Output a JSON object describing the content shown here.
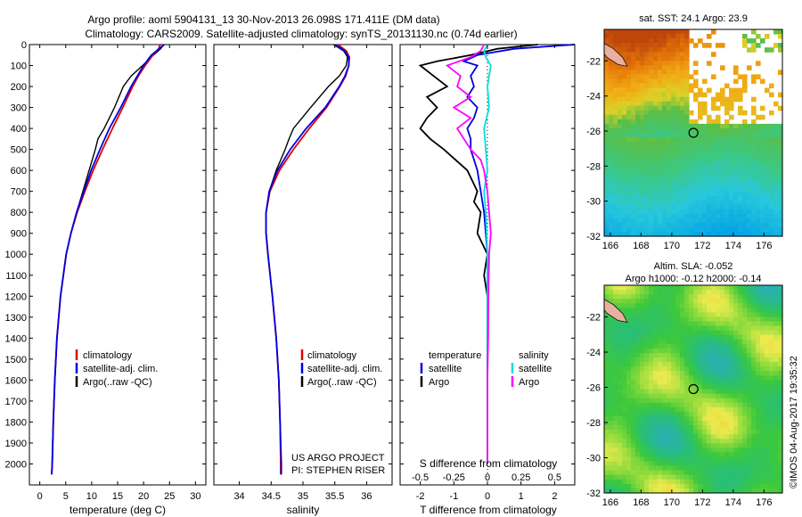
{
  "title_line1": "Argo profile: aoml 5904131_13 30-Nov-2013 26.098S 171.411E (DM data)",
  "title_line2": "Climatology: CARS2009. Satellite-adjusted climatology: synTS_20131130.nc (0.74d earlier)",
  "project": "US ARGO PROJECT",
  "pi": "PI: STEPHEN RISER",
  "map_sst_title": "sat. SST: 24.1 Argo: 23.9",
  "map_sla_title1": "Altim. SLA: -0.052",
  "map_sla_title2": "Argo h1000: -0.12 h2000: -0.14",
  "credit": "©IMOS 04-Aug-2017 19:35:32",
  "colors": {
    "climatology": "#e00000",
    "satellite": "#0000e0",
    "argo": "#000000",
    "sat_salinity": "#00e0e0",
    "argo_salinity": "#ff00ff"
  },
  "chart_data": [
    {
      "type": "line",
      "xlabel": "temperature (deg C)",
      "xlim": [
        -2,
        32
      ],
      "ylim": [
        2100,
        0
      ],
      "xticks": [
        0,
        5,
        10,
        15,
        20,
        25,
        30
      ],
      "yticks": [
        0,
        100,
        200,
        300,
        400,
        500,
        600,
        700,
        800,
        900,
        1000,
        1100,
        1200,
        1300,
        1400,
        1500,
        1600,
        1700,
        1800,
        1900,
        2000
      ],
      "legend": [
        "climatology",
        "satellite-adj. clim.",
        "Argo(..raw -QC)"
      ],
      "series": [
        {
          "name": "climatology",
          "depth": [
            0,
            20,
            50,
            100,
            150,
            200,
            300,
            400,
            500,
            600,
            700,
            800,
            900,
            1000,
            1200,
            1400,
            1600,
            1800,
            2000,
            2050
          ],
          "values": [
            23.2,
            22.9,
            21.8,
            20.3,
            19.0,
            17.9,
            16.0,
            14.0,
            12.1,
            10.3,
            8.7,
            7.2,
            6.0,
            5.1,
            4.0,
            3.3,
            2.9,
            2.6,
            2.4,
            2.3
          ]
        },
        {
          "name": "satellite-adj. clim.",
          "depth": [
            0,
            20,
            50,
            100,
            150,
            200,
            300,
            400,
            500,
            600,
            700,
            800,
            900,
            1000,
            1200,
            1400,
            1600,
            1800,
            2000,
            2050
          ],
          "values": [
            24.0,
            23.0,
            21.5,
            20.0,
            18.8,
            17.6,
            15.6,
            13.4,
            11.6,
            9.9,
            8.5,
            7.1,
            6.0,
            5.1,
            4.0,
            3.3,
            2.9,
            2.6,
            2.4,
            2.3
          ]
        },
        {
          "name": "Argo(..raw -QC)",
          "depth": [
            0,
            20,
            50,
            100,
            150,
            200,
            300,
            400,
            450,
            500,
            600,
            700,
            800,
            900,
            1000,
            1200,
            1400,
            1600,
            1800,
            2000,
            2050
          ],
          "values": [
            23.9,
            23.3,
            21.9,
            19.8,
            17.6,
            16.1,
            14.4,
            12.4,
            11.2,
            10.7,
            9.5,
            8.3,
            7.1,
            6.0,
            5.1,
            4.0,
            3.3,
            2.9,
            2.6,
            2.4,
            2.3
          ]
        }
      ]
    },
    {
      "type": "line",
      "xlabel": "salinity",
      "xlim": [
        33.6,
        36.4
      ],
      "ylim": [
        2100,
        0
      ],
      "xticks": [
        34,
        34.5,
        35,
        35.5,
        36
      ],
      "legend": [
        "climatology",
        "satellite-adj. clim.",
        "Argo(..raw -QC)"
      ],
      "series": [
        {
          "name": "climatology",
          "depth": [
            0,
            30,
            60,
            100,
            150,
            200,
            300,
            400,
            500,
            600,
            700,
            800,
            900,
            1000,
            1200,
            1400,
            1600,
            1800,
            2000,
            2050
          ],
          "values": [
            35.55,
            35.68,
            35.73,
            35.72,
            35.67,
            35.58,
            35.37,
            35.1,
            34.85,
            34.63,
            34.48,
            34.42,
            34.42,
            34.45,
            34.52,
            34.58,
            34.62,
            34.64,
            34.65,
            34.65
          ]
        },
        {
          "name": "satellite-adj. clim.",
          "depth": [
            0,
            30,
            60,
            100,
            150,
            200,
            300,
            400,
            500,
            600,
            700,
            800,
            900,
            1000,
            1200,
            1400,
            1600,
            1800,
            2000,
            2050
          ],
          "values": [
            35.5,
            35.66,
            35.72,
            35.72,
            35.66,
            35.57,
            35.35,
            35.05,
            34.8,
            34.6,
            34.47,
            34.42,
            34.42,
            34.45,
            34.52,
            34.58,
            34.62,
            34.64,
            34.66,
            34.66
          ]
        },
        {
          "name": "Argo(..raw -QC)",
          "depth": [
            0,
            30,
            60,
            100,
            150,
            200,
            300,
            400,
            450,
            500,
            600,
            700,
            800,
            900,
            1000,
            1200,
            1400,
            1600,
            1800,
            2000,
            2050
          ],
          "values": [
            35.48,
            35.64,
            35.7,
            35.68,
            35.57,
            35.4,
            35.12,
            34.85,
            34.78,
            34.72,
            34.58,
            34.47,
            34.42,
            34.42,
            34.45,
            34.52,
            34.58,
            34.62,
            34.64,
            34.65,
            34.65
          ]
        }
      ]
    },
    {
      "type": "line",
      "xlabel": "T difference from climatology",
      "xlabel_top": "S difference from climatology",
      "xlim": [
        -2.6,
        2.6
      ],
      "ylim": [
        2100,
        0
      ],
      "xticks": [
        -2,
        -1,
        0,
        1,
        2
      ],
      "xticks_top": [
        "-0.5",
        "-0.25",
        "0",
        "0.25",
        "0.5"
      ],
      "legend_temperature": [
        "temperature",
        "satellite",
        "Argo"
      ],
      "legend_salinity": [
        "salinity",
        "satellite",
        "Argo"
      ],
      "series": [
        {
          "name": "satellite",
          "depth": [
            0,
            20,
            50,
            80,
            100,
            150,
            200,
            250,
            300,
            350,
            400,
            450,
            500,
            600,
            700,
            800,
            900,
            1000,
            1200,
            1400,
            1600,
            1800,
            2000
          ],
          "values": [
            2.6,
            0.8,
            -0.3,
            -0.7,
            -0.3,
            -0.5,
            -0.4,
            -0.6,
            -0.3,
            -0.4,
            -0.6,
            -0.5,
            -0.5,
            -0.3,
            -0.2,
            -0.1,
            -0.05,
            0,
            0,
            0,
            0,
            0,
            0
          ]
        },
        {
          "name": "Argo",
          "depth": [
            0,
            20,
            50,
            80,
            100,
            150,
            200,
            250,
            300,
            350,
            400,
            450,
            500,
            600,
            700,
            750,
            800,
            900,
            1000,
            1100,
            1200,
            1400,
            1600,
            1800,
            2000
          ],
          "values": [
            1.5,
            0.3,
            -0.5,
            -1.5,
            -2.0,
            -1.6,
            -1.2,
            -1.8,
            -1.5,
            -1.8,
            -2.0,
            -1.7,
            -1.3,
            -0.6,
            -0.3,
            -0.4,
            -0.2,
            -0.3,
            0,
            -0.1,
            0,
            0,
            0,
            0,
            0
          ]
        },
        {
          "name": "satellite",
          "depth": [
            0,
            30,
            60,
            100,
            150,
            200,
            300,
            400,
            500,
            600,
            700,
            800,
            1000,
            1200,
            1400,
            1600,
            1800,
            2000
          ],
          "values": [
            0,
            -0.1,
            -0.05,
            0.1,
            0.05,
            0,
            0.05,
            -0.1,
            -0.05,
            0,
            -0.1,
            -0.05,
            0,
            0,
            0,
            0,
            0,
            0
          ]
        },
        {
          "name": "Argo",
          "depth": [
            0,
            30,
            60,
            100,
            150,
            200,
            250,
            300,
            350,
            400,
            450,
            500,
            550,
            600,
            700,
            800,
            900,
            1000,
            1200,
            1400,
            1600,
            1800,
            2000
          ],
          "values": [
            -0.1,
            -0.2,
            -0.5,
            -1.2,
            -0.8,
            -0.9,
            -0.5,
            -1.0,
            -0.5,
            -0.9,
            -0.7,
            -0.5,
            -0.2,
            -0.1,
            0,
            0.05,
            0.1,
            0.05,
            0.03,
            0.02,
            0,
            0,
            0
          ]
        }
      ]
    },
    {
      "type": "heatmap",
      "title": "sat. SST: 24.1 Argo: 23.9",
      "xlim": [
        165.6,
        177.2
      ],
      "ylim": [
        -32,
        -20.2
      ],
      "xticks": [
        166,
        168,
        170,
        172,
        174,
        176
      ],
      "yticks": [
        -22,
        -24,
        -26,
        -28,
        -30,
        -32
      ],
      "marker": {
        "lon": 171.41,
        "lat": -26.1
      }
    },
    {
      "type": "heatmap",
      "title": "Altim. SLA: -0.052",
      "xlim": [
        165.6,
        177.2
      ],
      "ylim": [
        -32,
        -20.2
      ],
      "xticks": [
        166,
        168,
        170,
        172,
        174,
        176
      ],
      "yticks": [
        -22,
        -24,
        -26,
        -28,
        -30,
        -32
      ],
      "marker": {
        "lon": 171.41,
        "lat": -26.1
      }
    }
  ]
}
